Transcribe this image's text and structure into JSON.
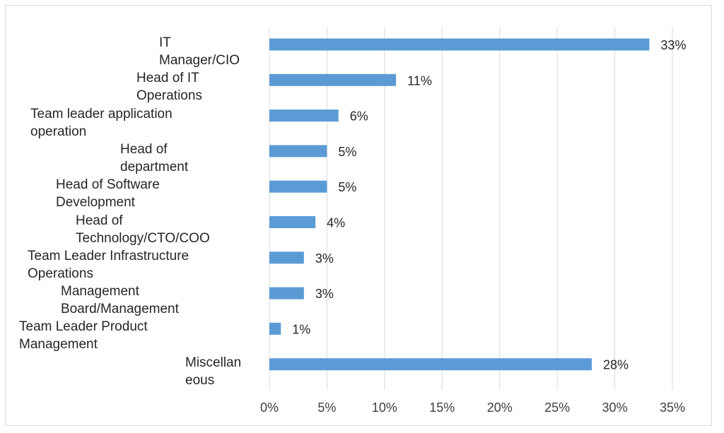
{
  "chart_data": {
    "type": "bar",
    "orientation": "horizontal",
    "title": "",
    "xlabel": "",
    "ylabel": "",
    "categories": [
      [
        "IT",
        "Manager/CIO"
      ],
      [
        "Head of IT",
        "Operations"
      ],
      [
        "Team leader application",
        "operation"
      ],
      [
        "Head of",
        "department"
      ],
      [
        "Head of Software",
        "Development"
      ],
      [
        "Head of",
        "Technology/CTO/COO"
      ],
      [
        "Team Leader Infrastructure",
        "Operations"
      ],
      [
        "Management",
        "Board/Management"
      ],
      [
        "Team Leader Product",
        "Management"
      ],
      [
        "Miscellan",
        "eous"
      ]
    ],
    "values": [
      33,
      11,
      6,
      5,
      5,
      4,
      3,
      3,
      1,
      28
    ],
    "data_labels": [
      "33%",
      "11%",
      "6%",
      "5%",
      "5%",
      "4%",
      "3%",
      "3%",
      "1%",
      "28%"
    ],
    "xlim": [
      0,
      35
    ],
    "xticks": [
      0,
      5,
      10,
      15,
      20,
      25,
      30,
      35
    ],
    "xtick_labels": [
      "0%",
      "5%",
      "10%",
      "15%",
      "20%",
      "25%",
      "30%",
      "35%"
    ],
    "grid": "vertical",
    "legend": "none",
    "colors": {
      "bar": "#5b9bd5",
      "grid": "#d9d9d9",
      "text": "#404040"
    }
  }
}
